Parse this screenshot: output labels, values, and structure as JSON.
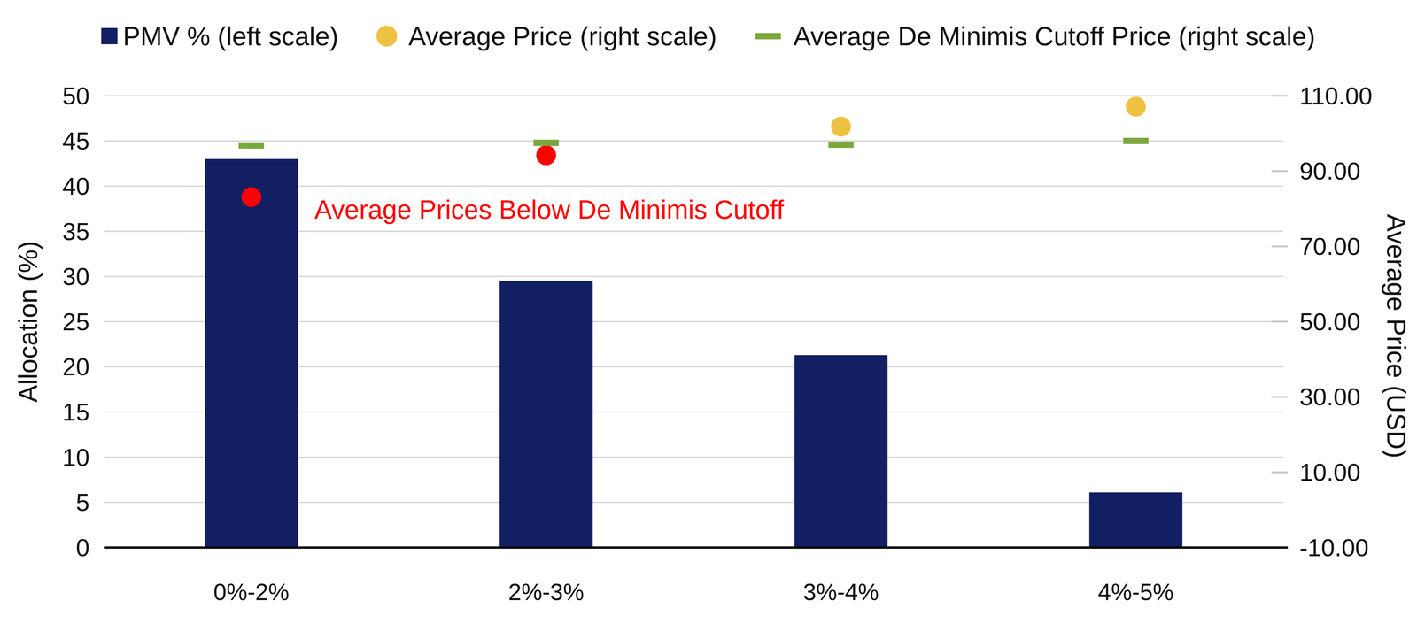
{
  "chart_data": {
    "type": "bar",
    "categories": [
      "0%-2%",
      "2%-3%",
      "3%-4%",
      "4%-5%"
    ],
    "series": [
      {
        "name": "PMV % (left scale)",
        "type": "bar",
        "color": "#131f63",
        "values": [
          43,
          29.5,
          21.3,
          6.1
        ]
      },
      {
        "name": "Average Price (right scale)",
        "type": "scatter",
        "marker": "circle",
        "axis": "y2",
        "color": "#efc141",
        "colors": [
          "#ff0000",
          "#ff0000",
          "#efc141",
          "#efc141"
        ],
        "values": [
          83.1,
          94.2,
          101.8,
          107.1
        ]
      },
      {
        "name": "Average De Minimis Cutoff Price (right scale)",
        "type": "scatter",
        "marker": "dash",
        "axis": "y2",
        "color": "#7aa83c",
        "values": [
          96.8,
          97.5,
          97.0,
          98.0
        ]
      }
    ],
    "y_label": "Allocation (%)",
    "y2_label": "Average Price (USD)",
    "annotation": "Average Prices Below De Minimis Cutoff",
    "annotation_color": "#ff0000",
    "ylim": [
      0,
      50
    ],
    "yticks": [
      0,
      5,
      10,
      15,
      20,
      25,
      30,
      35,
      40,
      45,
      50
    ],
    "y2lim": [
      -10,
      110
    ],
    "y2ticks": [
      {
        "value": -10,
        "label": "-10.00"
      },
      {
        "value": 10,
        "label": "10.00"
      },
      {
        "value": 30,
        "label": "30.00"
      },
      {
        "value": 50,
        "label": "50.00"
      },
      {
        "value": 70,
        "label": "70.00"
      },
      {
        "value": 90,
        "label": "90.00"
      },
      {
        "value": 110,
        "label": "110.00"
      }
    ],
    "grid": true,
    "legend": "top"
  }
}
